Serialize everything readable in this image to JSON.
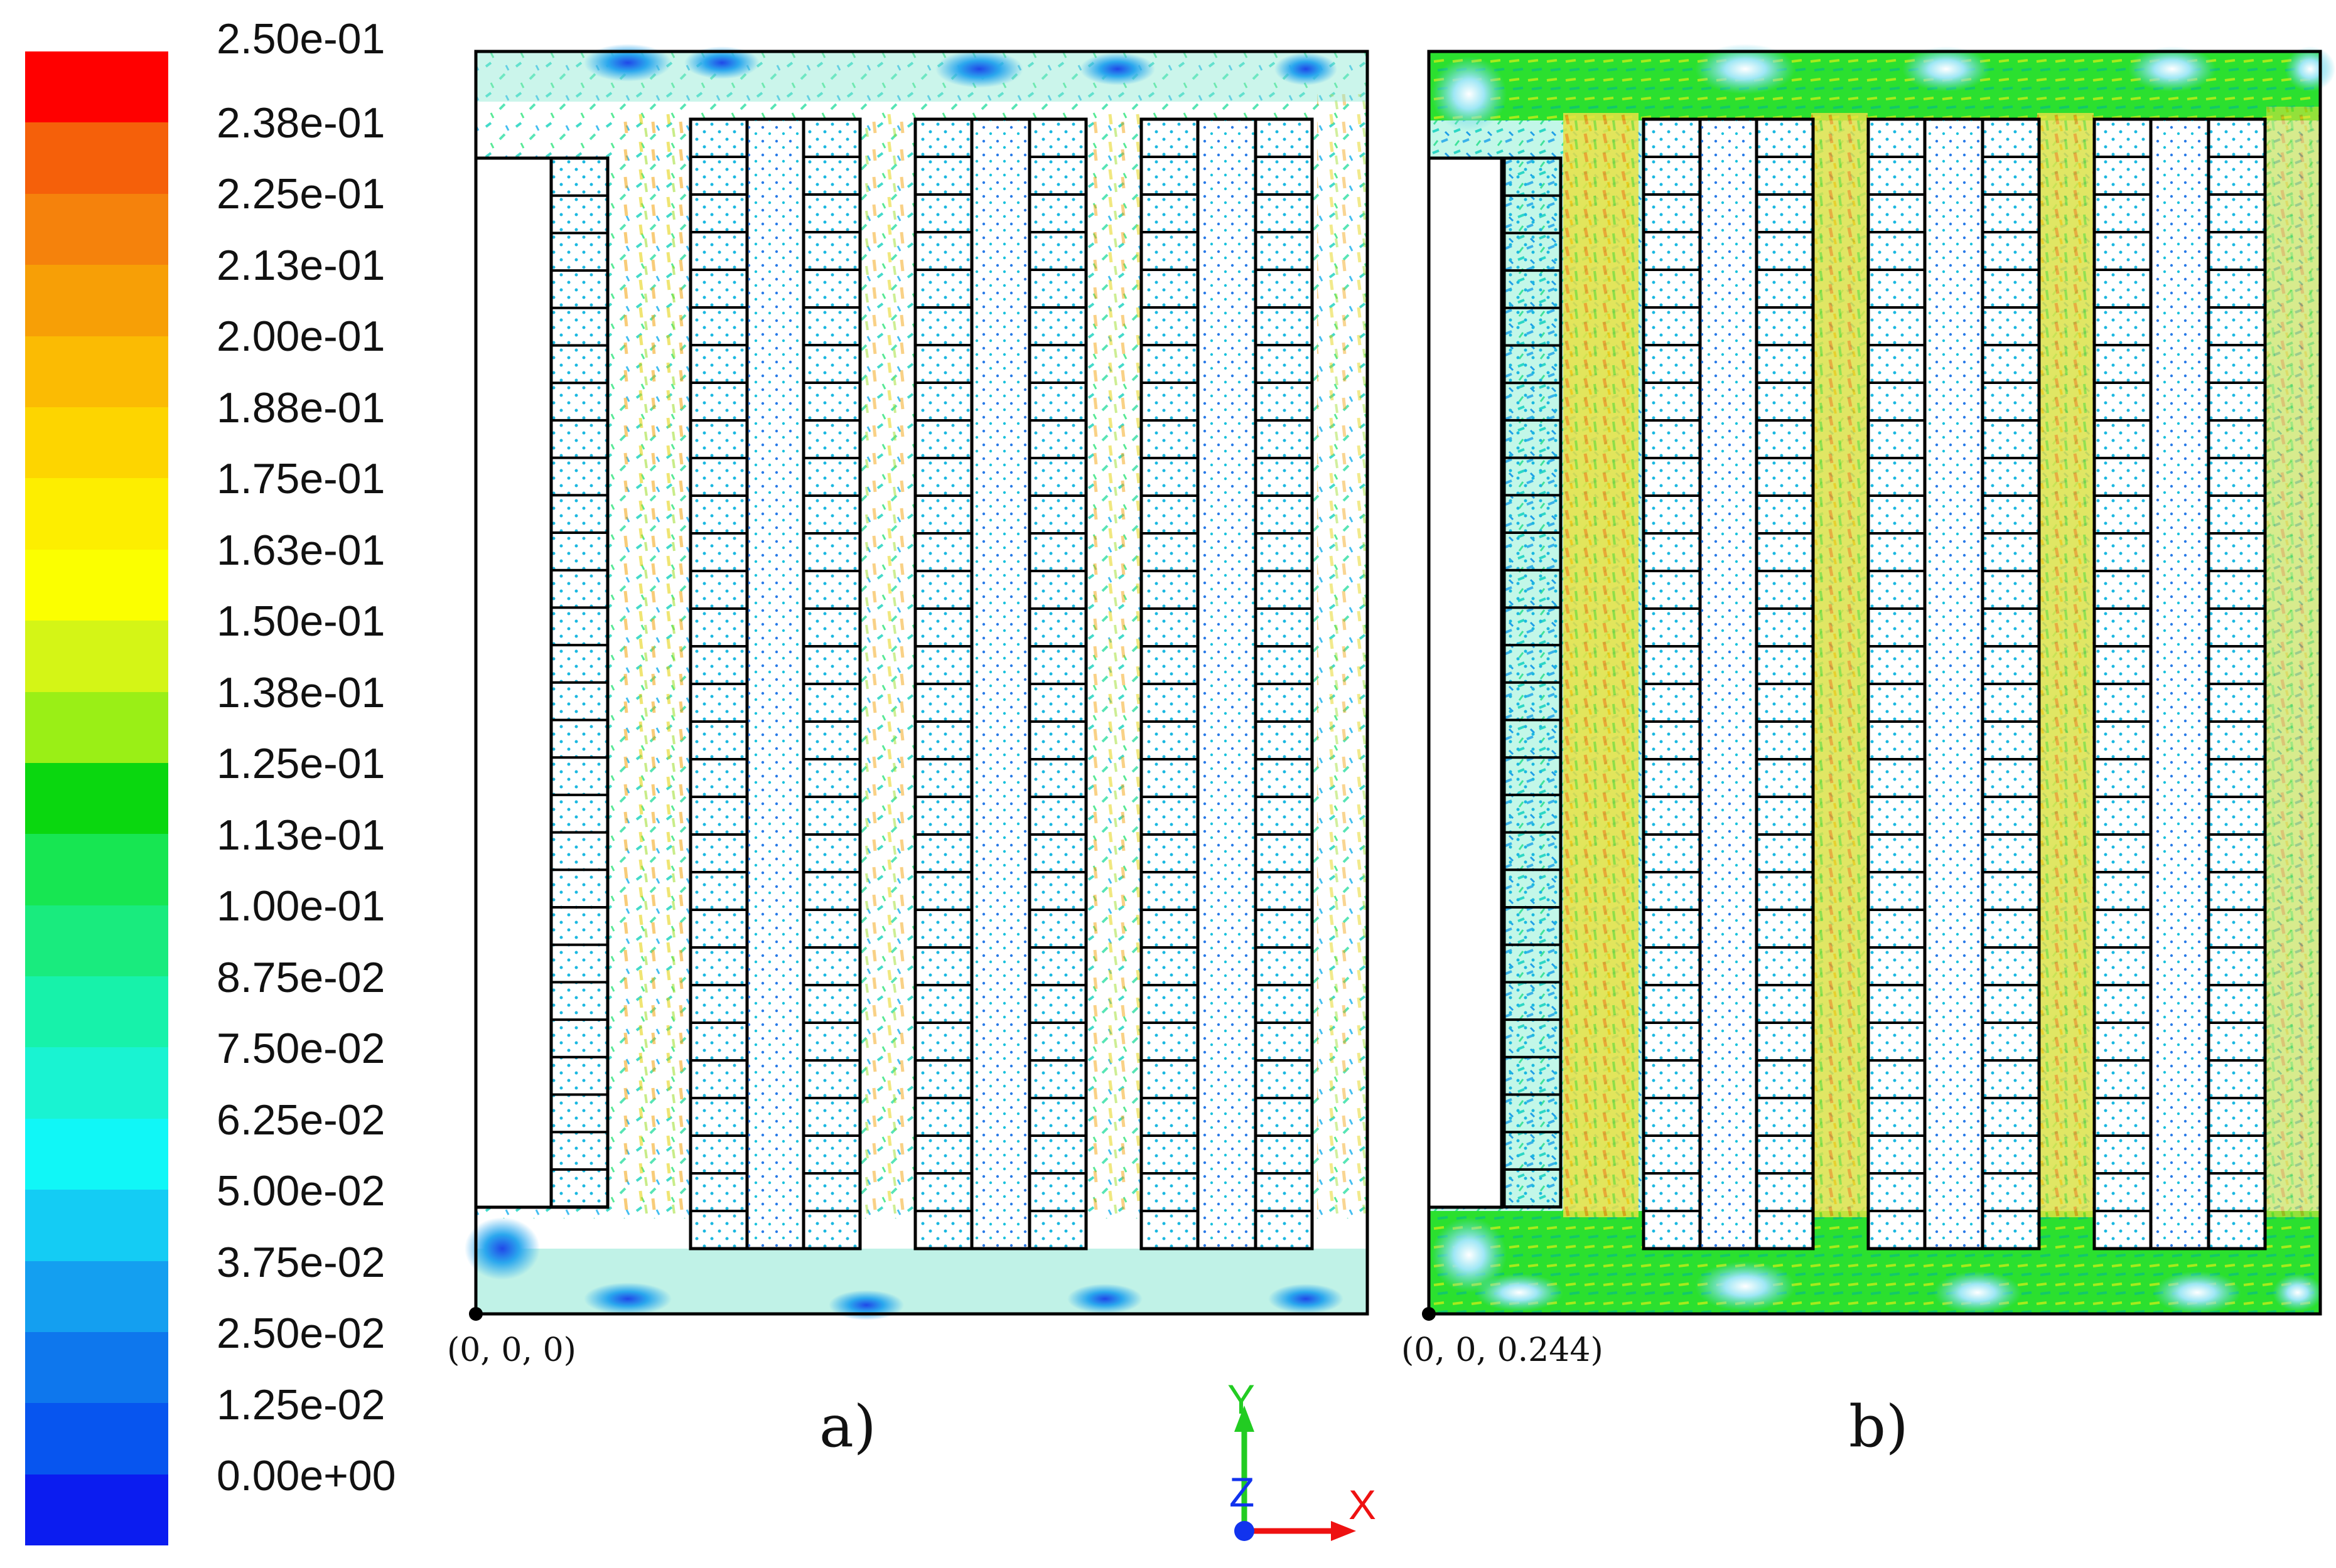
{
  "legend": {
    "labels": [
      "2.50e-01",
      "2.38e-01",
      "2.25e-01",
      "2.13e-01",
      "2.00e-01",
      "1.88e-01",
      "1.75e-01",
      "1.63e-01",
      "1.50e-01",
      "1.38e-01",
      "1.25e-01",
      "1.13e-01",
      "1.00e-01",
      "8.75e-02",
      "7.50e-02",
      "6.25e-02",
      "5.00e-02",
      "3.75e-02",
      "2.50e-02",
      "1.25e-02",
      "0.00e+00"
    ],
    "colors": [
      "#ff0000",
      "#f5600a",
      "#f5820c",
      "#f79f06",
      "#fbbb03",
      "#fdd500",
      "#fdee00",
      "#fbff00",
      "#d4f516",
      "#9aef16",
      "#0ad70f",
      "#17e652",
      "#19eb7e",
      "#17f2aa",
      "#19f3d2",
      "#10f7f7",
      "#14ccf4",
      "#149ff0",
      "#0e77ed",
      "#0755ef",
      "#0b1cf0"
    ]
  },
  "panels": [
    {
      "id": "a",
      "label": "a)",
      "origin": "(0, 0, 0)"
    },
    {
      "id": "b",
      "label": "b)",
      "origin": "(0, 0, 0.244)"
    }
  ],
  "axes": {
    "x": "X",
    "y": "Y",
    "z": "Z"
  }
}
